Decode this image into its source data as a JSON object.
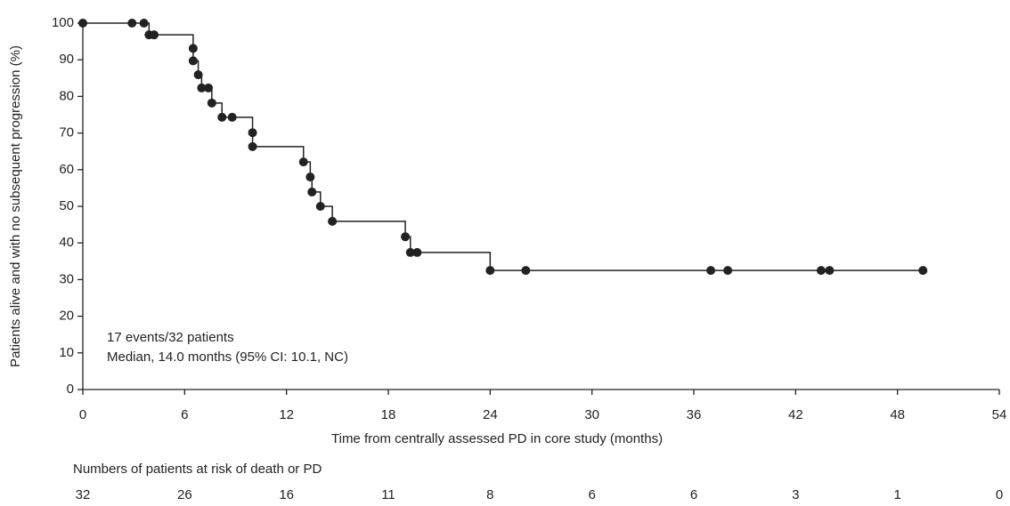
{
  "chart_data": {
    "type": "line",
    "step": true,
    "markers": true,
    "xlabel": "Time from centrally assessed PD in core study (months)",
    "ylabel": "Patients alive and with no subsequent progression (%)",
    "annotations": [
      "17 events/32 patients",
      "Median, 14.0 months (95% CI: 10.1, NC)"
    ],
    "xlim": [
      0,
      54
    ],
    "xticks": [
      0,
      6,
      12,
      18,
      24,
      30,
      36,
      42,
      48,
      54
    ],
    "ylim": [
      0,
      100
    ],
    "yticks": [
      0,
      10,
      20,
      30,
      40,
      50,
      60,
      70,
      80,
      90,
      100
    ],
    "series": [
      {
        "color": "#222222",
        "x": [
          0,
          2.9,
          3.6,
          3.9,
          4.2,
          6.5,
          6.5,
          6.8,
          7.0,
          7.4,
          7.6,
          8.2,
          8.8,
          10.0,
          10.0,
          13.0,
          13.4,
          13.5,
          14.0,
          14.7,
          19.0,
          19.3,
          19.7,
          24.0,
          26.1,
          37.0,
          38.0,
          43.5,
          44.0,
          49.5
        ],
        "values": [
          100,
          100,
          100,
          96.8,
          96.8,
          93.1,
          89.7,
          85.9,
          82.3,
          82.3,
          78.2,
          74.3,
          74.3,
          70.1,
          66.3,
          62.1,
          58.0,
          53.9,
          50.0,
          45.9,
          41.7,
          37.4,
          37.4,
          32.5,
          32.5,
          32.5,
          32.5,
          32.5,
          32.5,
          32.5
        ]
      }
    ],
    "at_risk": {
      "label": "Numbers of patients at risk of death or PD",
      "values": [
        32,
        26,
        16,
        11,
        8,
        6,
        6,
        3,
        1,
        0
      ]
    }
  }
}
